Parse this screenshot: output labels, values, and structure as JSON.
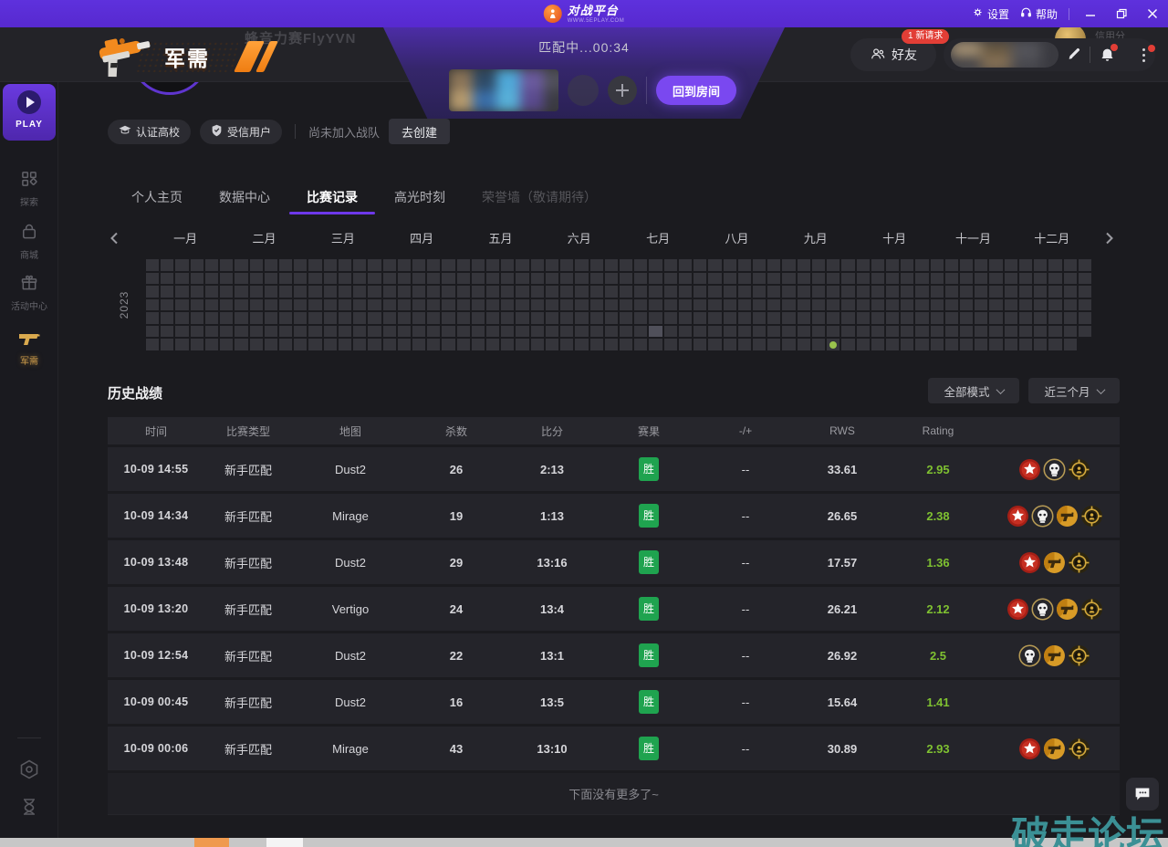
{
  "titlebar": {
    "app_name": "对战平台",
    "app_subtitle": "WWW.5EPLAY.COM",
    "settings_label": "设置",
    "help_label": "帮助"
  },
  "header": {
    "match_status": "匹配中...00:34",
    "return_room_label": "回到房间",
    "logo_label": "军需",
    "player_name": "蜂音力赛FlyYVN",
    "credit_label": "信用分",
    "friends_label": "好友",
    "friends_badge": "1 新请求"
  },
  "profile": {
    "school_badge": "认证高校",
    "trusted_badge": "受信用户",
    "team_status": "尚未加入战队",
    "create_team_label": "去创建"
  },
  "sidebar": {
    "items": [
      {
        "id": "play",
        "label": "PLAY"
      },
      {
        "id": "explore",
        "label": "探索"
      },
      {
        "id": "shop",
        "label": "商城"
      },
      {
        "id": "events",
        "label": "活动中心"
      },
      {
        "id": "supply",
        "label": "军需"
      }
    ]
  },
  "tabs": [
    {
      "label": "个人主页",
      "active": false
    },
    {
      "label": "数据中心",
      "active": false
    },
    {
      "label": "比赛记录",
      "active": true
    },
    {
      "label": "高光时刻",
      "active": false
    },
    {
      "label": "荣誉墙（敬请期待）",
      "active": false,
      "disabled": true
    }
  ],
  "calendar": {
    "year": "2023",
    "months": [
      "一月",
      "二月",
      "三月",
      "四月",
      "五月",
      "六月",
      "七月",
      "八月",
      "九月",
      "十月",
      "十一月",
      "十二月"
    ],
    "grid": {
      "cols": 64,
      "rows": 7,
      "light_cell": {
        "row": 6,
        "col": 35
      },
      "dot_cell": {
        "row": 7,
        "col": 47
      }
    }
  },
  "history": {
    "title": "历史战绩",
    "mode_filter": "全部模式",
    "range_filter": "近三个月",
    "columns": [
      "时间",
      "比赛类型",
      "地图",
      "杀数",
      "比分",
      "赛果",
      "-/+",
      "RWS",
      "Rating",
      ""
    ],
    "rows": [
      {
        "time": "10-09 14:55",
        "type": "新手匹配",
        "map": "Dust2",
        "kills": "26",
        "score": "2:13",
        "result": "胜",
        "plus_minus": "--",
        "rws": "33.61",
        "rating": "2.95",
        "medals": [
          "star",
          "skull",
          "crosshair"
        ]
      },
      {
        "time": "10-09 14:34",
        "type": "新手匹配",
        "map": "Mirage",
        "kills": "19",
        "score": "1:13",
        "result": "胜",
        "plus_minus": "--",
        "rws": "26.65",
        "rating": "2.38",
        "medals": [
          "star",
          "skull",
          "gun",
          "crosshair"
        ]
      },
      {
        "time": "10-09 13:48",
        "type": "新手匹配",
        "map": "Dust2",
        "kills": "29",
        "score": "13:16",
        "result": "胜",
        "plus_minus": "--",
        "rws": "17.57",
        "rating": "1.36",
        "medals": [
          "star",
          "gun",
          "crosshair"
        ]
      },
      {
        "time": "10-09 13:20",
        "type": "新手匹配",
        "map": "Vertigo",
        "kills": "24",
        "score": "13:4",
        "result": "胜",
        "plus_minus": "--",
        "rws": "26.21",
        "rating": "2.12",
        "medals": [
          "star",
          "skull",
          "gun",
          "crosshair"
        ]
      },
      {
        "time": "10-09 12:54",
        "type": "新手匹配",
        "map": "Dust2",
        "kills": "22",
        "score": "13:1",
        "result": "胜",
        "plus_minus": "--",
        "rws": "26.92",
        "rating": "2.5",
        "medals": [
          "skull",
          "gun",
          "crosshair"
        ]
      },
      {
        "time": "10-09 00:45",
        "type": "新手匹配",
        "map": "Dust2",
        "kills": "16",
        "score": "13:5",
        "result": "胜",
        "plus_minus": "--",
        "rws": "15.64",
        "rating": "1.41",
        "medals": []
      },
      {
        "time": "10-09 00:06",
        "type": "新手匹配",
        "map": "Mirage",
        "kills": "43",
        "score": "13:10",
        "result": "胜",
        "plus_minus": "--",
        "rws": "30.89",
        "rating": "2.93",
        "medals": [
          "star",
          "gun",
          "crosshair"
        ]
      }
    ],
    "footer": "下面没有更多了~"
  },
  "watermark": "破走论坛",
  "colors": {
    "accent_purple": "#5b2ed6",
    "win_green": "#1fa34f",
    "rating_green": "#7fc131",
    "badge_red": "#e23e36",
    "gold": "#d9a94e",
    "heat_dot_green": "#9ac34d",
    "watermark_teal": "#3b9095"
  }
}
